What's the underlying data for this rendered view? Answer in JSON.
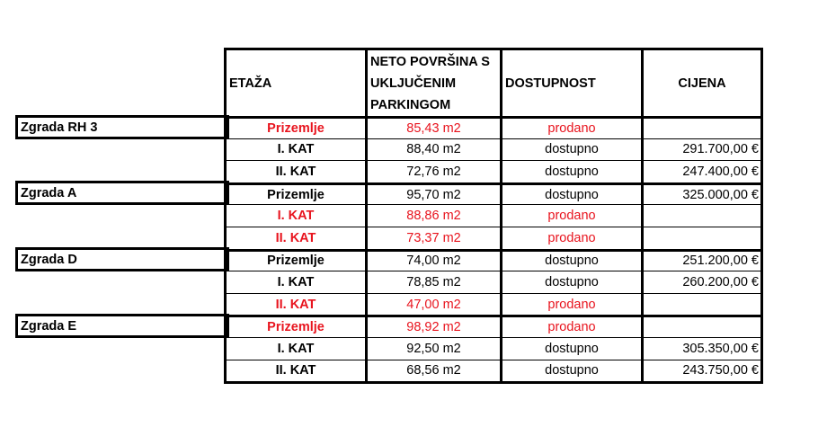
{
  "headers": [
    "ETAŽA",
    "NETO POVRŠINA S UKLJUČENIM PARKINGOM",
    "DOSTUPNOST",
    "CIJENA"
  ],
  "colors": {
    "sold": "#e8141e",
    "available": "#000000"
  },
  "buildings": [
    "Zgrada RH 3",
    "Zgrada A",
    "Zgrada D",
    "Zgrada E"
  ],
  "rows": [
    {
      "floor": "Prizemlje",
      "area": "85,43 m2",
      "status": "prodano",
      "price": "",
      "sold": true,
      "group": true
    },
    {
      "floor": "I. KAT",
      "area": "88,40 m2",
      "status": "dostupno",
      "price": "291.700,00 €",
      "sold": false
    },
    {
      "floor": "II. KAT",
      "area": "72,76 m2",
      "status": "dostupno",
      "price": "247.400,00 €",
      "sold": false
    },
    {
      "floor": "Prizemlje",
      "area": "95,70 m2",
      "status": "dostupno",
      "price": "325.000,00 €",
      "sold": false,
      "group": true
    },
    {
      "floor": "I. KAT",
      "area": "88,86 m2",
      "status": "prodano",
      "price": "",
      "sold": true
    },
    {
      "floor": "II. KAT",
      "area": "73,37 m2",
      "status": "prodano",
      "price": "",
      "sold": true
    },
    {
      "floor": "Prizemlje",
      "area": "74,00 m2",
      "status": "dostupno",
      "price": "251.200,00 €",
      "sold": false,
      "group": true
    },
    {
      "floor": "I. KAT",
      "area": "78,85 m2",
      "status": "dostupno",
      "price": "260.200,00 €",
      "sold": false
    },
    {
      "floor": "II. KAT",
      "area": "47,00 m2",
      "status": "prodano",
      "price": "",
      "sold": true
    },
    {
      "floor": "Prizemlje",
      "area": "98,92 m2",
      "status": "prodano",
      "price": "",
      "sold": true,
      "group": true
    },
    {
      "floor": "I. KAT",
      "area": "92,50 m2",
      "status": "dostupno",
      "price": "305.350,00 €",
      "sold": false
    },
    {
      "floor": "II. KAT",
      "area": "68,56 m2",
      "status": "dostupno",
      "price": "243.750,00 €",
      "sold": false
    }
  ]
}
